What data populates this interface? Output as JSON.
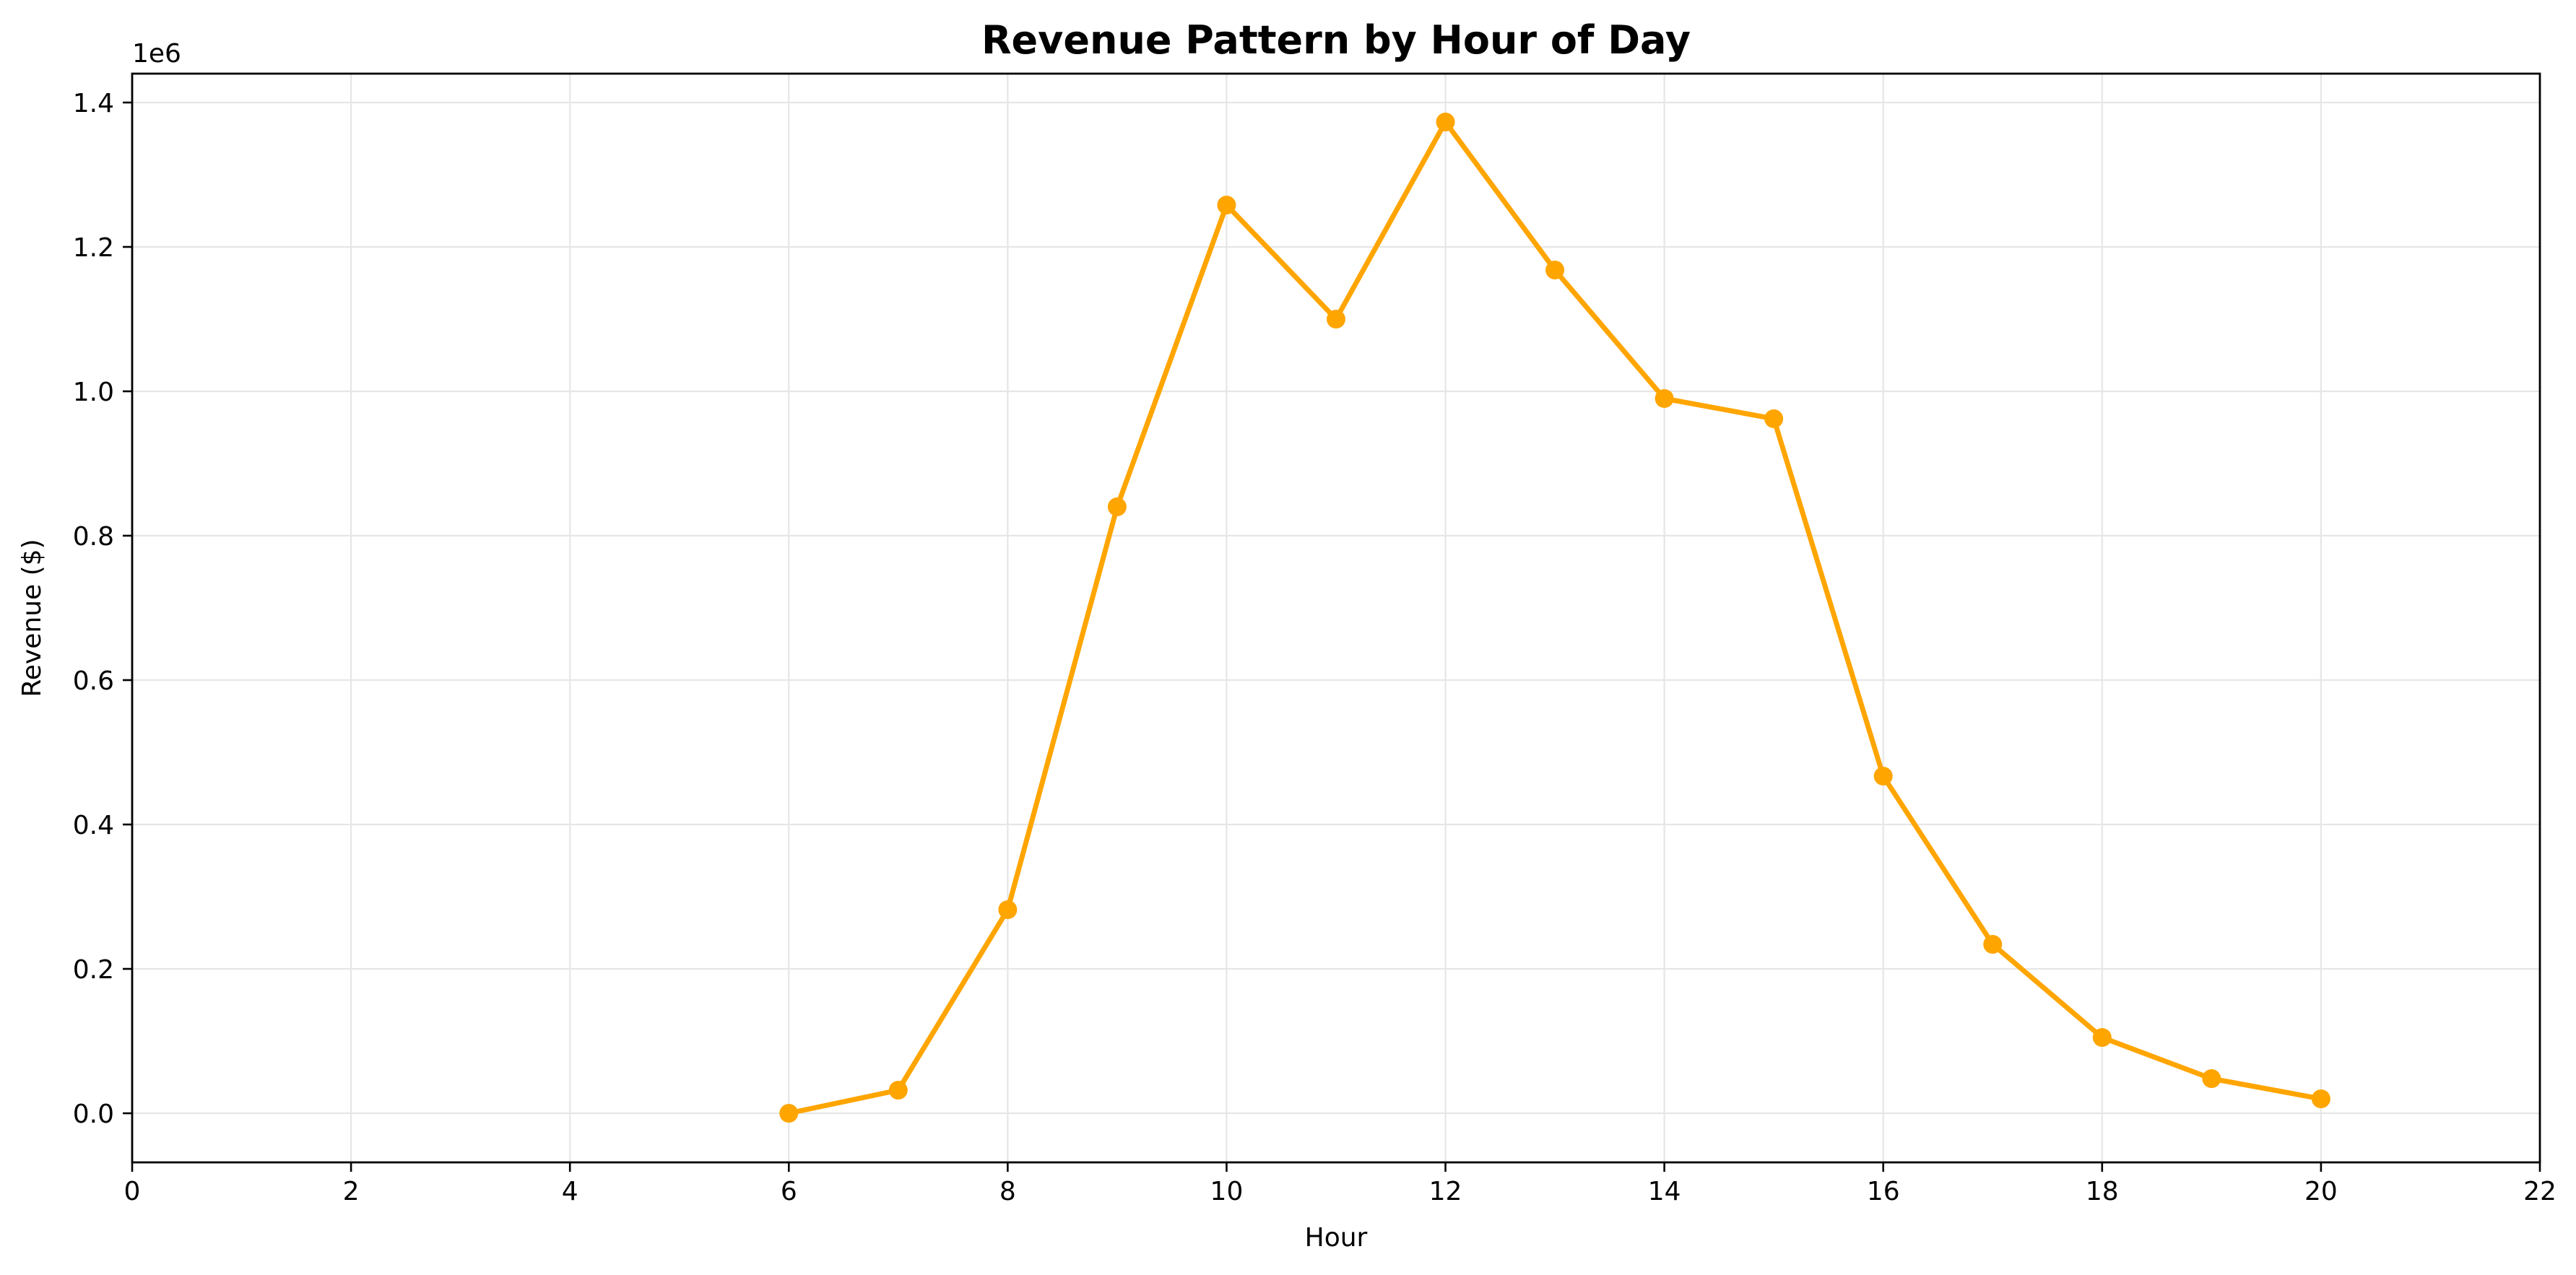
{
  "chart_data": {
    "type": "line",
    "title": "Revenue Pattern by Hour of Day",
    "xlabel": "Hour",
    "ylabel": "Revenue ($)",
    "y_offset_label": "1e6",
    "y_scale": 1000000,
    "xlim": [
      0,
      22
    ],
    "ylim": [
      -0.068,
      1.44
    ],
    "x_ticks": [
      0,
      2,
      4,
      6,
      8,
      10,
      12,
      14,
      16,
      18,
      20,
      22
    ],
    "x_tick_labels": [
      "0",
      "2",
      "4",
      "6",
      "8",
      "10",
      "12",
      "14",
      "16",
      "18",
      "20",
      "22"
    ],
    "y_ticks": [
      0.0,
      0.2,
      0.4,
      0.6,
      0.8,
      1.0,
      1.2,
      1.4
    ],
    "y_tick_labels": [
      "0.0",
      "0.2",
      "0.4",
      "0.6",
      "0.8",
      "1.0",
      "1.2",
      "1.4"
    ],
    "grid": true,
    "series": [
      {
        "color": "#FFA500",
        "marker": "circle",
        "x": [
          6,
          7,
          8,
          9,
          10,
          11,
          12,
          13,
          14,
          15,
          16,
          17,
          18,
          19,
          20
        ],
        "y": [
          0.0,
          0.032,
          0.282,
          0.84,
          1.258,
          1.1,
          1.373,
          1.168,
          0.99,
          0.962,
          0.467,
          0.234,
          0.105,
          0.048,
          0.02
        ]
      }
    ]
  }
}
